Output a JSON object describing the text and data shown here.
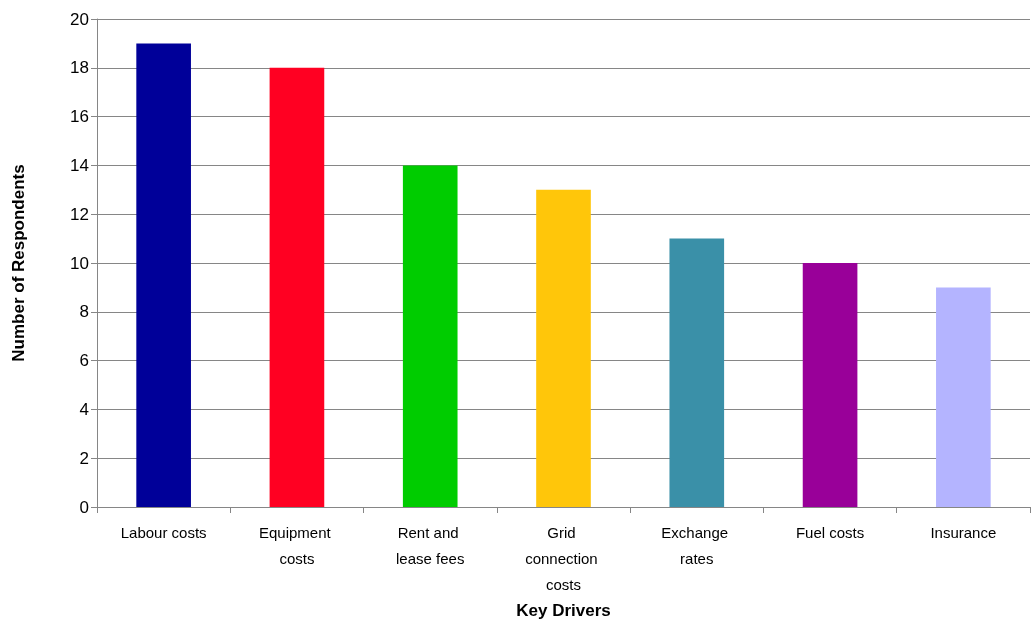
{
  "chart_data": {
    "type": "bar",
    "xlabel": "Key Drivers",
    "ylabel": "Number of Respondents",
    "categories": [
      "Labour costs",
      "Equipment costs",
      "Rent and lease fees",
      "Grid connection costs",
      "Exchange rates",
      "Fuel costs",
      "Insurance"
    ],
    "values": [
      19,
      18,
      14,
      13,
      11,
      10,
      9
    ],
    "colors": [
      "#000099",
      "#ff0022",
      "#00cc00",
      "#ffc60a",
      "#3a90a8",
      "#990099",
      "#b4b4ff"
    ],
    "ylim": [
      0,
      20
    ],
    "yticks": [
      0,
      2,
      4,
      6,
      8,
      10,
      12,
      14,
      16,
      18,
      20
    ],
    "grid": "y"
  }
}
